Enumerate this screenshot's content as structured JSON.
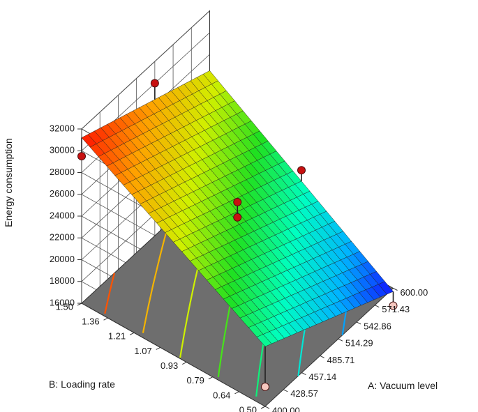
{
  "chart_data": {
    "type": "surface3d",
    "title": "",
    "zlabel": "Energy consumption",
    "xlabel": "A: Vacuum level",
    "ylabel": "B: Loading rate",
    "x_ticks": [
      "400.00",
      "428.57",
      "457.14",
      "485.71",
      "514.29",
      "542.86",
      "571.43",
      "600.00"
    ],
    "y_ticks": [
      "0.50",
      "0.64",
      "0.79",
      "0.93",
      "1.07",
      "1.21",
      "1.36",
      "1.50"
    ],
    "z_ticks": [
      "16000",
      "18000",
      "20000",
      "22000",
      "24000",
      "26000",
      "28000",
      "30000",
      "32000"
    ],
    "xlim": [
      400,
      600
    ],
    "ylim": [
      0.5,
      1.5
    ],
    "zlim": [
      16000,
      32000
    ],
    "surface_corners": {
      "x400_y0.5": 21500,
      "x600_y0.5": 15700,
      "x400_y1.5": 31200,
      "x600_y1.5": 26500
    },
    "contour_levels": [
      18000,
      20000,
      22000,
      24000,
      26000,
      28000,
      30000
    ],
    "design_points": [
      {
        "x": 400,
        "y": 1.5,
        "z": 29500,
        "above": true
      },
      {
        "x": 514.29,
        "y": 1.5,
        "z": 30000,
        "above": true
      },
      {
        "x": 500,
        "y": 1.0,
        "z": 24600,
        "above": true
      },
      {
        "x": 500,
        "y": 1.0,
        "z": 23200,
        "above": true
      },
      {
        "x": 600,
        "y": 1.0,
        "z": 22100,
        "above": true
      },
      {
        "x": 400,
        "y": 0.5,
        "z": 17800,
        "above": false
      },
      {
        "x": 600,
        "y": 0.5,
        "z": 14400,
        "above": false
      }
    ],
    "colormap": [
      "#1010ff",
      "#00b4ff",
      "#00ffc0",
      "#20e020",
      "#d0f000",
      "#ffa000",
      "#ff1000"
    ],
    "grid": true
  }
}
